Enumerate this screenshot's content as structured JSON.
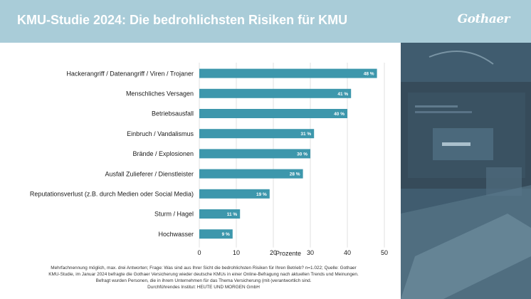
{
  "header": {
    "title": "KMU-Studie 2024: Die bedrohlichsten Risiken für KMU",
    "logo_text": "Gothaer"
  },
  "colors": {
    "header_bg": "#a9ccd8",
    "bar": "#3d97ac",
    "grid": "#d9d9d9",
    "bar_label": "#ffffff"
  },
  "chart_data": {
    "type": "bar",
    "orientation": "horizontal",
    "categories": [
      "Hackerangriff / Datenangriff / Viren / Trojaner",
      "Menschliches Versagen",
      "Betriebsausfall",
      "Einbruch / Vandalismus",
      "Brände / Explosionen",
      "Ausfall Zulieferer / Dienstleister",
      "Reputationsverlust (z.B. durch Medien oder Social Media)",
      "Sturm / Hagel",
      "Hochwasser"
    ],
    "values": [
      48,
      41,
      40,
      31,
      30,
      28,
      19,
      11,
      9
    ],
    "data_labels": [
      "48 %",
      "41 %",
      "40 %",
      "31 %",
      "30 %",
      "28 %",
      "19 %",
      "11 %",
      "9 %"
    ],
    "xlabel": "Prozente",
    "xlim": [
      0,
      50
    ],
    "xticks": [
      "0",
      "10",
      "20",
      "30",
      "40",
      "50"
    ],
    "grid": true
  },
  "footnote": {
    "line1": "Mehrfachnennung möglich, max. drei Antworten; Frage: Was sind aus Ihrer Sicht die bedrohlichsten Risiken für Ihren Betrieb? n=1.022; Quelle: Gothaer",
    "line2": "KMU-Studie, im Januar 2024 befragte die Gothaer Versicherung wieder deutsche KMUs in einer Online-Befragung nach aktuellen Trends und Meinungen.",
    "line3": "Befragt wurden Personen, die in ihrem Unternehmen für das Thema Versicherung (mit-)verantwortlich sind.",
    "line4": "Durchführendes Institut: HEUTE UND MORGEN GmbH"
  }
}
